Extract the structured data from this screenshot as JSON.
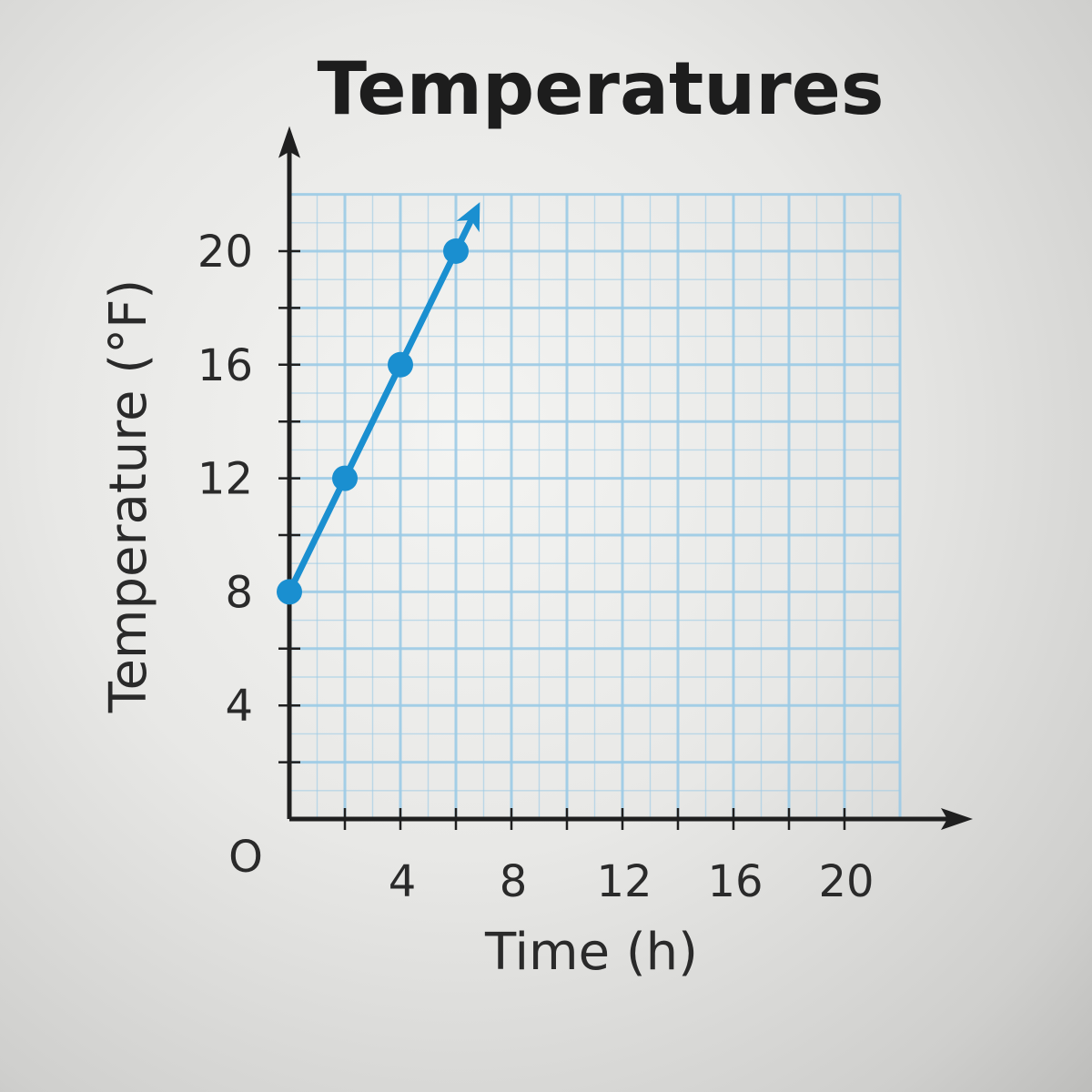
{
  "chart_data": {
    "type": "line",
    "title": "Temperatures",
    "xlabel": "Time (h)",
    "ylabel": "Temperature (°F)",
    "origin_label": "O",
    "xlim": [
      0,
      22
    ],
    "ylim": [
      0,
      22
    ],
    "x_ticks": [
      2,
      4,
      6,
      8,
      10,
      12,
      14,
      16,
      18,
      20
    ],
    "x_tick_labels": [
      {
        "value": 4,
        "label": "4"
      },
      {
        "value": 8,
        "label": "8"
      },
      {
        "value": 12,
        "label": "12"
      },
      {
        "value": 16,
        "label": "16"
      },
      {
        "value": 20,
        "label": "20"
      }
    ],
    "y_ticks": [
      2,
      4,
      6,
      8,
      10,
      12,
      14,
      16,
      18,
      20
    ],
    "y_tick_labels": [
      {
        "value": 4,
        "label": "4"
      },
      {
        "value": 8,
        "label": "8"
      },
      {
        "value": 12,
        "label": "12"
      },
      {
        "value": 16,
        "label": "16"
      },
      {
        "value": 20,
        "label": "20"
      }
    ],
    "grid": true,
    "series": [
      {
        "x": [
          0,
          2,
          4,
          6
        ],
        "y": [
          8,
          12,
          16,
          20
        ],
        "continues_with_arrow": true
      }
    ],
    "colors": {
      "line": "#1a8fd0",
      "grid": "#9ccbe6",
      "axis": "#1f1f1f"
    }
  }
}
